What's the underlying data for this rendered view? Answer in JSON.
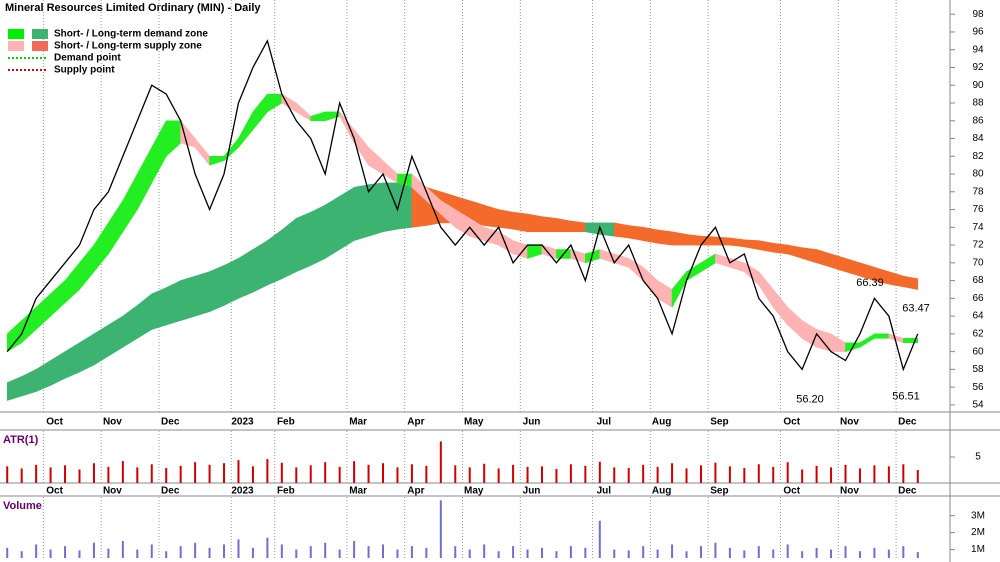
{
  "chart_data": [
    {
      "type": "line",
      "title": "Mineral Resources Limited Ordinary (MIN) - Daily",
      "categories": [
        null,
        null,
        null,
        "Oct",
        null,
        null,
        null,
        "Nov",
        null,
        null,
        null,
        "Dec",
        null,
        null,
        null,
        null,
        "2023",
        null,
        null,
        "Feb",
        null,
        null,
        null,
        null,
        "Mar",
        null,
        null,
        null,
        "Apr",
        null,
        null,
        null,
        "May",
        null,
        null,
        null,
        "Jun",
        null,
        null,
        null,
        null,
        "Jul",
        null,
        null,
        null,
        "Aug",
        null,
        null,
        null,
        "Sep",
        null,
        null,
        null,
        null,
        "Oct",
        null,
        null,
        null,
        "Nov",
        null,
        null,
        null,
        "Dec",
        null
      ],
      "series": [
        {
          "color": "#000000",
          "values": [
            60,
            62,
            66,
            68,
            70,
            72,
            76,
            78,
            82,
            86,
            90,
            89,
            86,
            80,
            76,
            80,
            88,
            92,
            95,
            89,
            86,
            84,
            80,
            88,
            84,
            78,
            80,
            76,
            82,
            78,
            74,
            72,
            74,
            72,
            74,
            70,
            72,
            72,
            70,
            72,
            68,
            74,
            70,
            72,
            68,
            66,
            62,
            68,
            72,
            74,
            70,
            71,
            66,
            64,
            60,
            58,
            62,
            60,
            59,
            62,
            66,
            64,
            58,
            62
          ]
        }
      ],
      "bands": [
        {
          "rising_color": "#3cb371",
          "falling_color": "#f36a2a",
          "upper": [
            56.5,
            57.2,
            58,
            59,
            60,
            61,
            62,
            63,
            64,
            65.2,
            66.5,
            67.2,
            68,
            68.5,
            69,
            69.7,
            70.5,
            71.5,
            72.5,
            73.7,
            75,
            75.7,
            76.5,
            77.5,
            78.5,
            78.8,
            79,
            79,
            79,
            78.5,
            78,
            77.5,
            77,
            76.5,
            76,
            75.7,
            75.5,
            75.2,
            75,
            74.7,
            74.5,
            74.5,
            74.5,
            74.2,
            74,
            73.7,
            73.5,
            73.2,
            73,
            72.9,
            72.8,
            72.6,
            72.5,
            72.2,
            72,
            71.7,
            71.5,
            71,
            70.5,
            70,
            69.5,
            69,
            68.5,
            68.2
          ],
          "lower": [
            54.5,
            55,
            55.5,
            56.2,
            57,
            57.7,
            58.5,
            59.5,
            60.5,
            61.5,
            62.5,
            63,
            63.5,
            64,
            64.5,
            65.2,
            66,
            66.7,
            67.5,
            68.2,
            69,
            69.7,
            70.5,
            71.5,
            72.5,
            73,
            73.5,
            73.8,
            74,
            74.2,
            74.5,
            74.5,
            74.5,
            74.2,
            74,
            73.8,
            73.5,
            73.5,
            73.5,
            73.5,
            73.5,
            73.2,
            73,
            72.8,
            72.5,
            72.2,
            72,
            72,
            72,
            72,
            72,
            71.8,
            71.5,
            71.2,
            71,
            70.5,
            70,
            69.5,
            69,
            68.5,
            68,
            67.6,
            67.3,
            67
          ]
        },
        {
          "rising_color": "#22ee22",
          "falling_color": "#ffb3b3",
          "upper": [
            62,
            63.5,
            65,
            66.5,
            68,
            70,
            72,
            74.5,
            77,
            80,
            83,
            86,
            86,
            84,
            82,
            82,
            84,
            87,
            89,
            89,
            88,
            86.5,
            87,
            87,
            85,
            83,
            81.5,
            80,
            80,
            78.5,
            77,
            76,
            75,
            74,
            73.5,
            72.5,
            72,
            72,
            71.5,
            71.5,
            71,
            71.5,
            71,
            70.5,
            69.5,
            68,
            67,
            69,
            70,
            71,
            70.5,
            70,
            69,
            67,
            65,
            63.5,
            62.5,
            62,
            61,
            61,
            62,
            62,
            61.5,
            61.5
          ],
          "lower": [
            60,
            61,
            62.5,
            64,
            65.5,
            67,
            69,
            71,
            73.5,
            76,
            79,
            82,
            83.5,
            83,
            81,
            81.5,
            83,
            85,
            87,
            88,
            87,
            86,
            86,
            86.5,
            83.5,
            81,
            80,
            79,
            78.5,
            77,
            75.5,
            74,
            73,
            72.5,
            72,
            71,
            70.5,
            71,
            70.5,
            70.5,
            70,
            70.5,
            70,
            69.5,
            68,
            66,
            65,
            68,
            69,
            70,
            69.5,
            69,
            67.5,
            65,
            63,
            61.5,
            60.5,
            60,
            60,
            60.5,
            61.5,
            61.5,
            61,
            61
          ]
        }
      ],
      "legend": [
        {
          "label": "Short- / Long-term demand zone",
          "colors": [
            "#00ee00",
            "#3cb371"
          ]
        },
        {
          "label": "Short- / Long-term supply zone",
          "colors": [
            "#ffb3b3",
            "#f36a5a"
          ]
        },
        {
          "label": "Demand point",
          "colors": [
            "#00cc00"
          ]
        },
        {
          "label": "Supply point",
          "colors": [
            "#dd0000"
          ]
        }
      ],
      "annotations": [
        {
          "value": 66.39,
          "label": "66.39"
        },
        {
          "value": 56.2,
          "label": "56.20"
        },
        {
          "value": 56.51,
          "label": "56.51"
        },
        {
          "value": 63.47,
          "label": "63.47"
        }
      ],
      "ylim": [
        53.2,
        99.6
      ],
      "yticks": [
        54,
        56,
        58,
        60,
        62,
        64,
        66,
        68,
        70,
        72,
        74,
        76,
        78,
        80,
        82,
        84,
        86,
        88,
        90,
        92,
        94,
        96,
        98
      ]
    },
    {
      "type": "bar",
      "title": "ATR(1)",
      "color": "#cc0000",
      "categories": [
        null,
        null,
        null,
        "Oct",
        null,
        null,
        null,
        "Nov",
        null,
        null,
        null,
        "Dec",
        null,
        null,
        null,
        null,
        "2023",
        null,
        null,
        "Feb",
        null,
        null,
        null,
        null,
        "Mar",
        null,
        null,
        null,
        "Apr",
        null,
        null,
        null,
        "May",
        null,
        null,
        null,
        "Jun",
        null,
        null,
        null,
        null,
        "Jul",
        null,
        null,
        null,
        "Aug",
        null,
        null,
        null,
        "Sep",
        null,
        null,
        null,
        null,
        "Oct",
        null,
        null,
        null,
        "Nov",
        null,
        null,
        null,
        "Dec",
        null
      ],
      "values": [
        3.2,
        2.8,
        3.5,
        3,
        3.4,
        2.6,
        3.8,
        3.1,
        4.2,
        3,
        3.6,
        2.9,
        3.3,
        4,
        3.5,
        3.8,
        4.4,
        3.2,
        4.6,
        3.9,
        3,
        3.4,
        4,
        3.1,
        4.2,
        3.5,
        3.8,
        3,
        3.6,
        3.3,
        8,
        3.4,
        3,
        3.7,
        2.8,
        3.5,
        3.1,
        3.2,
        2.7,
        3.6,
        3.3,
        4.1,
        3,
        2.9,
        3.5,
        3.1,
        3.8,
        2.8,
        3.4,
        3.9,
        3.2,
        2.9,
        3.6,
        3.1,
        4,
        2.6,
        3.3,
        3,
        3.5,
        2.8,
        3.4,
        3.2,
        3.6,
        2.5
      ],
      "ylim": [
        0,
        10
      ],
      "yticks": [
        5
      ]
    },
    {
      "type": "bar",
      "title": "Volume",
      "color": "#6f6fd0",
      "values": [
        1100000,
        900000,
        1300000,
        1000000,
        1200000,
        950000,
        1400000,
        1050000,
        1500000,
        1000000,
        1300000,
        900000,
        1200000,
        1400000,
        1100000,
        1300000,
        1600000,
        1100000,
        1700000,
        1300000,
        1000000,
        1200000,
        1400000,
        1000000,
        1500000,
        1200000,
        1300000,
        1000000,
        1200000,
        1100000,
        3900000,
        1200000,
        1000000,
        1300000,
        900000,
        1200000,
        1000000,
        1100000,
        900000,
        1200000,
        1100000,
        2700000,
        1000000,
        950000,
        1200000,
        1000000,
        1300000,
        900000,
        1200000,
        1400000,
        1100000,
        950000,
        1200000,
        1000000,
        1300000,
        900000,
        1100000,
        1000000,
        1200000,
        900000,
        1100000,
        1000000,
        1200000,
        850000
      ],
      "ylim": [
        500000,
        4100000
      ],
      "yticks": [
        {
          "value": 1000000,
          "label": "1M"
        },
        {
          "value": 2000000,
          "label": "2M"
        },
        {
          "value": 3000000,
          "label": "3M"
        }
      ]
    }
  ]
}
